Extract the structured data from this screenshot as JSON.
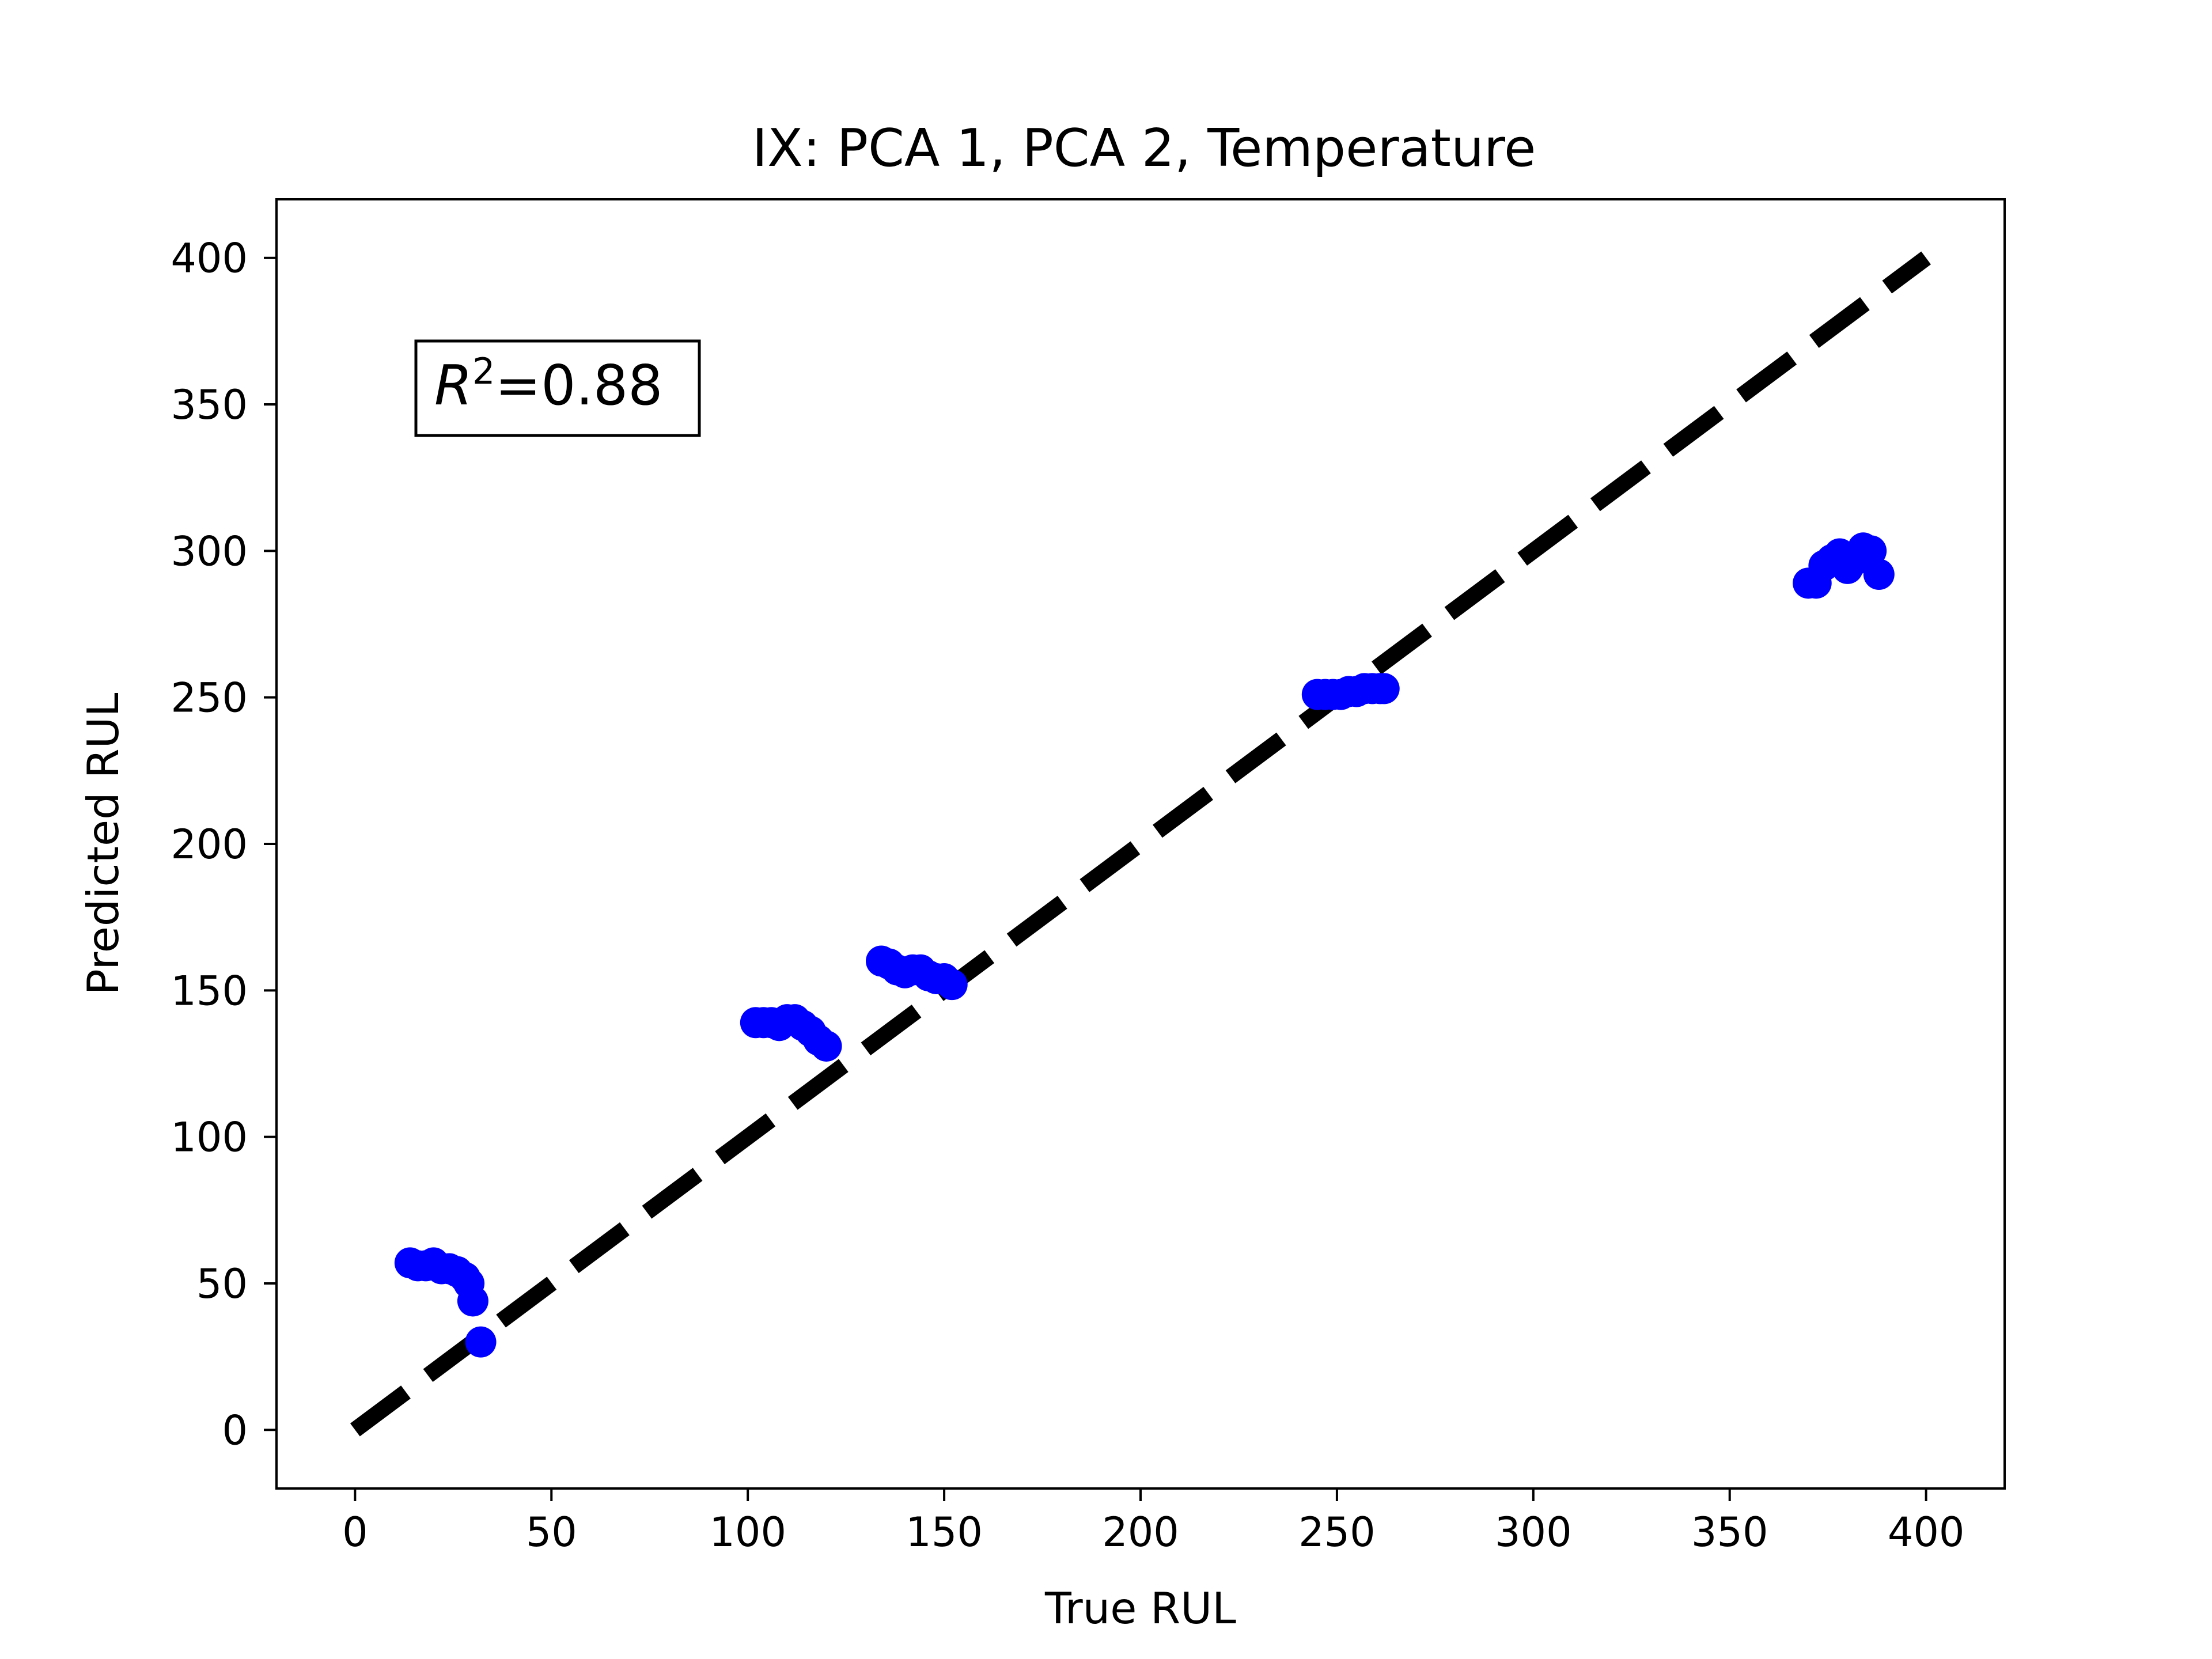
{
  "chart_data": {
    "type": "scatter",
    "title": "IX: PCA 1, PCA 2, Temperature",
    "xlabel": "True RUL",
    "ylabel": "Predicted RUL",
    "xlim": [
      -20,
      420
    ],
    "ylim": [
      -20,
      420
    ],
    "xticks": [
      0,
      50,
      100,
      150,
      200,
      250,
      300,
      350,
      400
    ],
    "yticks": [
      0,
      50,
      100,
      150,
      200,
      250,
      300,
      350,
      400
    ],
    "grid": false,
    "annotation": {
      "r2_symbol": "R",
      "r2_exponent": "2",
      "r2_value": "=0.88"
    },
    "reference_line": {
      "style": "dashed",
      "color": "#000000",
      "from": [
        0,
        0
      ],
      "to": [
        400,
        400
      ]
    },
    "series": [
      {
        "color": "#0000ff",
        "points": [
          [
            14,
            57
          ],
          [
            16,
            56
          ],
          [
            18,
            56
          ],
          [
            20,
            57
          ],
          [
            22,
            55
          ],
          [
            24,
            55
          ],
          [
            26,
            54
          ],
          [
            28,
            52
          ],
          [
            29,
            50
          ],
          [
            30,
            44
          ],
          [
            32,
            30
          ],
          [
            102,
            139
          ],
          [
            104,
            139
          ],
          [
            106,
            139
          ],
          [
            108,
            138
          ],
          [
            110,
            140
          ],
          [
            112,
            140
          ],
          [
            114,
            138
          ],
          [
            116,
            136
          ],
          [
            118,
            133
          ],
          [
            120,
            131
          ],
          [
            134,
            160
          ],
          [
            136,
            159
          ],
          [
            138,
            157
          ],
          [
            140,
            156
          ],
          [
            142,
            157
          ],
          [
            144,
            157
          ],
          [
            146,
            155
          ],
          [
            148,
            154
          ],
          [
            150,
            154
          ],
          [
            152,
            152
          ],
          [
            245,
            251
          ],
          [
            247,
            251
          ],
          [
            249,
            251
          ],
          [
            251,
            251
          ],
          [
            253,
            252
          ],
          [
            255,
            252
          ],
          [
            257,
            253
          ],
          [
            259,
            253
          ],
          [
            261,
            253
          ],
          [
            262,
            253
          ],
          [
            370,
            289
          ],
          [
            372,
            289
          ],
          [
            374,
            295
          ],
          [
            376,
            297
          ],
          [
            378,
            299
          ],
          [
            380,
            294
          ],
          [
            382,
            297
          ],
          [
            384,
            301
          ],
          [
            386,
            300
          ],
          [
            388,
            292
          ]
        ]
      }
    ]
  }
}
